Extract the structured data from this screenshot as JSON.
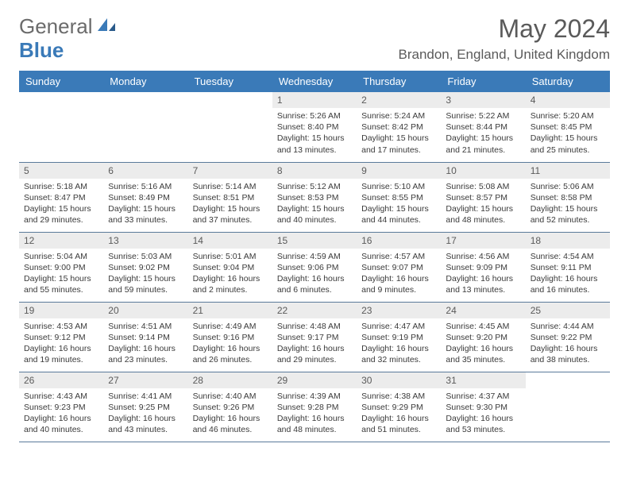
{
  "brand": {
    "part1": "General",
    "part2": "Blue"
  },
  "title": {
    "month_year": "May 2024",
    "location": "Brandon, England, United Kingdom"
  },
  "colors": {
    "header_bg": "#3a7ab8",
    "daynum_bg": "#ececec",
    "text": "#3a3a3a",
    "border": "#5a7a9a"
  },
  "day_headers": [
    "Sunday",
    "Monday",
    "Tuesday",
    "Wednesday",
    "Thursday",
    "Friday",
    "Saturday"
  ],
  "weeks": [
    [
      null,
      null,
      null,
      {
        "n": "1",
        "sr": "Sunrise: 5:26 AM",
        "ss": "Sunset: 8:40 PM",
        "dl": "Daylight: 15 hours and 13 minutes."
      },
      {
        "n": "2",
        "sr": "Sunrise: 5:24 AM",
        "ss": "Sunset: 8:42 PM",
        "dl": "Daylight: 15 hours and 17 minutes."
      },
      {
        "n": "3",
        "sr": "Sunrise: 5:22 AM",
        "ss": "Sunset: 8:44 PM",
        "dl": "Daylight: 15 hours and 21 minutes."
      },
      {
        "n": "4",
        "sr": "Sunrise: 5:20 AM",
        "ss": "Sunset: 8:45 PM",
        "dl": "Daylight: 15 hours and 25 minutes."
      }
    ],
    [
      {
        "n": "5",
        "sr": "Sunrise: 5:18 AM",
        "ss": "Sunset: 8:47 PM",
        "dl": "Daylight: 15 hours and 29 minutes."
      },
      {
        "n": "6",
        "sr": "Sunrise: 5:16 AM",
        "ss": "Sunset: 8:49 PM",
        "dl": "Daylight: 15 hours and 33 minutes."
      },
      {
        "n": "7",
        "sr": "Sunrise: 5:14 AM",
        "ss": "Sunset: 8:51 PM",
        "dl": "Daylight: 15 hours and 37 minutes."
      },
      {
        "n": "8",
        "sr": "Sunrise: 5:12 AM",
        "ss": "Sunset: 8:53 PM",
        "dl": "Daylight: 15 hours and 40 minutes."
      },
      {
        "n": "9",
        "sr": "Sunrise: 5:10 AM",
        "ss": "Sunset: 8:55 PM",
        "dl": "Daylight: 15 hours and 44 minutes."
      },
      {
        "n": "10",
        "sr": "Sunrise: 5:08 AM",
        "ss": "Sunset: 8:57 PM",
        "dl": "Daylight: 15 hours and 48 minutes."
      },
      {
        "n": "11",
        "sr": "Sunrise: 5:06 AM",
        "ss": "Sunset: 8:58 PM",
        "dl": "Daylight: 15 hours and 52 minutes."
      }
    ],
    [
      {
        "n": "12",
        "sr": "Sunrise: 5:04 AM",
        "ss": "Sunset: 9:00 PM",
        "dl": "Daylight: 15 hours and 55 minutes."
      },
      {
        "n": "13",
        "sr": "Sunrise: 5:03 AM",
        "ss": "Sunset: 9:02 PM",
        "dl": "Daylight: 15 hours and 59 minutes."
      },
      {
        "n": "14",
        "sr": "Sunrise: 5:01 AM",
        "ss": "Sunset: 9:04 PM",
        "dl": "Daylight: 16 hours and 2 minutes."
      },
      {
        "n": "15",
        "sr": "Sunrise: 4:59 AM",
        "ss": "Sunset: 9:06 PM",
        "dl": "Daylight: 16 hours and 6 minutes."
      },
      {
        "n": "16",
        "sr": "Sunrise: 4:57 AM",
        "ss": "Sunset: 9:07 PM",
        "dl": "Daylight: 16 hours and 9 minutes."
      },
      {
        "n": "17",
        "sr": "Sunrise: 4:56 AM",
        "ss": "Sunset: 9:09 PM",
        "dl": "Daylight: 16 hours and 13 minutes."
      },
      {
        "n": "18",
        "sr": "Sunrise: 4:54 AM",
        "ss": "Sunset: 9:11 PM",
        "dl": "Daylight: 16 hours and 16 minutes."
      }
    ],
    [
      {
        "n": "19",
        "sr": "Sunrise: 4:53 AM",
        "ss": "Sunset: 9:12 PM",
        "dl": "Daylight: 16 hours and 19 minutes."
      },
      {
        "n": "20",
        "sr": "Sunrise: 4:51 AM",
        "ss": "Sunset: 9:14 PM",
        "dl": "Daylight: 16 hours and 23 minutes."
      },
      {
        "n": "21",
        "sr": "Sunrise: 4:49 AM",
        "ss": "Sunset: 9:16 PM",
        "dl": "Daylight: 16 hours and 26 minutes."
      },
      {
        "n": "22",
        "sr": "Sunrise: 4:48 AM",
        "ss": "Sunset: 9:17 PM",
        "dl": "Daylight: 16 hours and 29 minutes."
      },
      {
        "n": "23",
        "sr": "Sunrise: 4:47 AM",
        "ss": "Sunset: 9:19 PM",
        "dl": "Daylight: 16 hours and 32 minutes."
      },
      {
        "n": "24",
        "sr": "Sunrise: 4:45 AM",
        "ss": "Sunset: 9:20 PM",
        "dl": "Daylight: 16 hours and 35 minutes."
      },
      {
        "n": "25",
        "sr": "Sunrise: 4:44 AM",
        "ss": "Sunset: 9:22 PM",
        "dl": "Daylight: 16 hours and 38 minutes."
      }
    ],
    [
      {
        "n": "26",
        "sr": "Sunrise: 4:43 AM",
        "ss": "Sunset: 9:23 PM",
        "dl": "Daylight: 16 hours and 40 minutes."
      },
      {
        "n": "27",
        "sr": "Sunrise: 4:41 AM",
        "ss": "Sunset: 9:25 PM",
        "dl": "Daylight: 16 hours and 43 minutes."
      },
      {
        "n": "28",
        "sr": "Sunrise: 4:40 AM",
        "ss": "Sunset: 9:26 PM",
        "dl": "Daylight: 16 hours and 46 minutes."
      },
      {
        "n": "29",
        "sr": "Sunrise: 4:39 AM",
        "ss": "Sunset: 9:28 PM",
        "dl": "Daylight: 16 hours and 48 minutes."
      },
      {
        "n": "30",
        "sr": "Sunrise: 4:38 AM",
        "ss": "Sunset: 9:29 PM",
        "dl": "Daylight: 16 hours and 51 minutes."
      },
      {
        "n": "31",
        "sr": "Sunrise: 4:37 AM",
        "ss": "Sunset: 9:30 PM",
        "dl": "Daylight: 16 hours and 53 minutes."
      },
      null
    ]
  ]
}
